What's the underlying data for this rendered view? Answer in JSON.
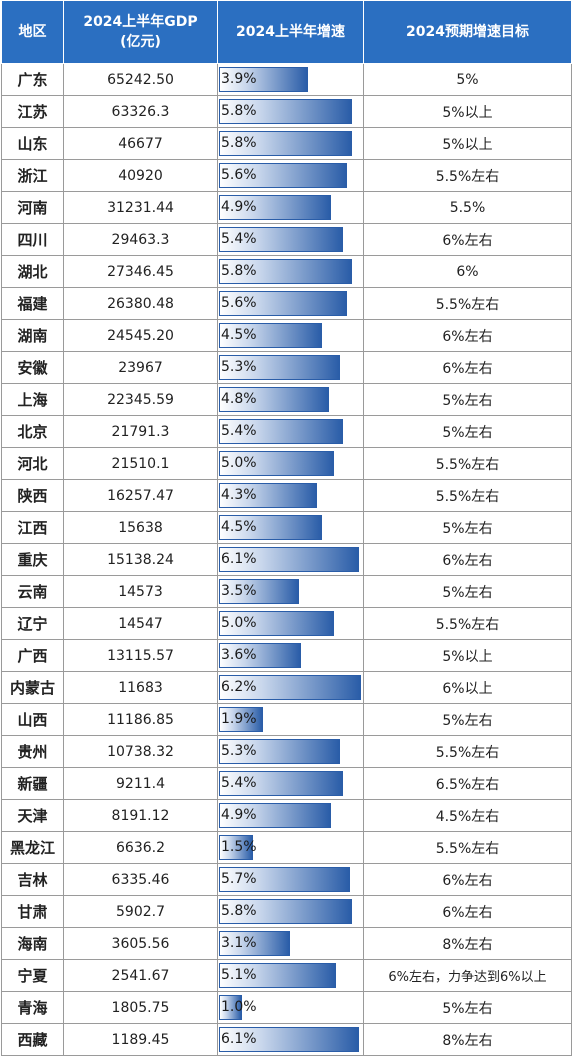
{
  "table": {
    "headers": [
      "地区",
      "2024上半年GDP\n(亿元)",
      "2024上半年增速",
      "2024预期增速目标"
    ],
    "rows": [
      [
        "广东",
        "65242.50",
        "3.9%",
        "5%"
      ],
      [
        "江苏",
        "63326.3",
        "5.8%",
        "5%以上"
      ],
      [
        "山东",
        "46677",
        "5.8%",
        "5%以上"
      ],
      [
        "浙江",
        "40920",
        "5.6%",
        "5.5%左右"
      ],
      [
        "河南",
        "31231.44",
        "4.9%",
        "5.5%"
      ],
      [
        "四川",
        "29463.3",
        "5.4%",
        "6%左右"
      ],
      [
        "湖北",
        "27346.45",
        "5.8%",
        "6%"
      ],
      [
        "福建",
        "26380.48",
        "5.6%",
        "5.5%左右"
      ],
      [
        "湖南",
        "24545.20",
        "4.5%",
        "6%左右"
      ],
      [
        "安徽",
        "23967",
        "5.3%",
        "6%左右"
      ],
      [
        "上海",
        "22345.59",
        "4.8%",
        "5%左右"
      ],
      [
        "北京",
        "21791.3",
        "5.4%",
        "5%左右"
      ],
      [
        "河北",
        "21510.1",
        "5.0%",
        "5.5%左右"
      ],
      [
        "陕西",
        "16257.47",
        "4.3%",
        "5.5%左右"
      ],
      [
        "江西",
        "15638",
        "4.5%",
        "5%左右"
      ],
      [
        "重庆",
        "15138.24",
        "6.1%",
        "6%左右"
      ],
      [
        "云南",
        "14573",
        "3.5%",
        "5%左右"
      ],
      [
        "辽宁",
        "14547",
        "5.0%",
        "5.5%左右"
      ],
      [
        "广西",
        "13115.57",
        "3.6%",
        "5%以上"
      ],
      [
        "内蒙古",
        "11683",
        "6.2%",
        "6%以上"
      ],
      [
        "山西",
        "11186.85",
        "1.9%",
        "5%左右"
      ],
      [
        "贵州",
        "10738.32",
        "5.3%",
        "5.5%左右"
      ],
      [
        "新疆",
        "9211.4",
        "5.4%",
        "6.5%左右"
      ],
      [
        "天津",
        "8191.12",
        "4.9%",
        "4.5%左右"
      ],
      [
        "黑龙江",
        "6636.2",
        "1.5%",
        "5.5%左右"
      ],
      [
        "吉林",
        "6335.46",
        "5.7%",
        "6%左右"
      ],
      [
        "甘肃",
        "5902.7",
        "5.8%",
        "6%左右"
      ],
      [
        "海南",
        "3605.56",
        "3.1%",
        "8%左右"
      ],
      [
        "宁夏",
        "2541.67",
        "5.1%",
        "6%左右，力争达到6%以上"
      ],
      [
        "青海",
        "1805.75",
        "1.0%",
        "5%左右"
      ],
      [
        "西藏",
        "1189.45",
        "6.1%",
        "8%左右"
      ]
    ]
  },
  "chart_data": {
    "type": "table",
    "columns": [
      "地区",
      "2024上半年GDP(亿元)",
      "2024上半年增速",
      "2024预期增速目标"
    ],
    "bar_column": "2024上半年增速",
    "bar_values": [
      3.9,
      5.8,
      5.8,
      5.6,
      4.9,
      5.4,
      5.8,
      5.6,
      4.5,
      5.3,
      4.8,
      5.4,
      5.0,
      4.3,
      4.5,
      6.1,
      3.5,
      5.0,
      3.6,
      6.2,
      1.9,
      5.3,
      5.4,
      4.9,
      1.5,
      5.7,
      5.8,
      3.1,
      5.1,
      1.0,
      6.1
    ],
    "bar_max": 6.2,
    "bar_color": "#2a5da8",
    "header_color": "#2b6fc1"
  }
}
